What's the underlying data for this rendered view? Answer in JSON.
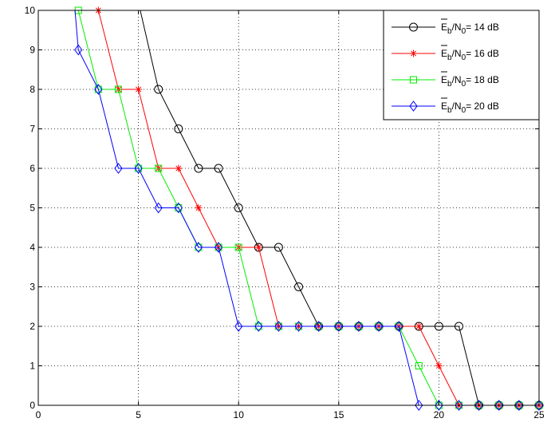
{
  "chart_data": {
    "type": "line",
    "title": "",
    "xlabel": "",
    "ylabel": "",
    "xlim": [
      0,
      25
    ],
    "ylim": [
      0,
      10
    ],
    "xticks": [
      0,
      5,
      10,
      15,
      20,
      25
    ],
    "yticks": [
      0,
      1,
      2,
      3,
      4,
      5,
      6,
      7,
      8,
      9,
      10
    ],
    "grid": true,
    "legend_position": "top-right",
    "series": [
      {
        "name": "Ē_b/N_0= 14 dB",
        "legend": {
          "var": "E",
          "sub1": "b",
          "mid": "/N",
          "sub2": "0",
          "suffix": "= 14 dB"
        },
        "color": "#000000",
        "marker": "circle",
        "x": [
          5,
          6,
          7,
          8,
          9,
          10,
          11,
          12,
          13,
          14,
          15,
          16,
          17,
          18,
          19,
          20,
          21,
          22,
          23,
          24,
          25
        ],
        "y": [
          10.2,
          8,
          7,
          6,
          6,
          5,
          4,
          4,
          3,
          2,
          2,
          2,
          2,
          2,
          2,
          2,
          2,
          0,
          0,
          0,
          0
        ],
        "marker_from": 1
      },
      {
        "name": "Ē_b/N_0= 16 dB",
        "legend": {
          "var": "E",
          "sub1": "b",
          "mid": "/N",
          "sub2": "0",
          "suffix": "= 16 dB"
        },
        "color": "#ff0000",
        "marker": "asterisk",
        "x": [
          3,
          4,
          5,
          6,
          7,
          8,
          9,
          10,
          11,
          12,
          13,
          14,
          15,
          16,
          17,
          18,
          19,
          20,
          21,
          22,
          23,
          24,
          25
        ],
        "y": [
          10,
          8,
          8,
          6,
          6,
          5,
          4,
          4,
          4,
          2,
          2,
          2,
          2,
          2,
          2,
          2,
          2,
          1,
          0,
          0,
          0,
          0,
          0
        ],
        "marker_from": 0
      },
      {
        "name": "Ē_b/N_0= 18 dB",
        "legend": {
          "var": "E",
          "sub1": "b",
          "mid": "/N",
          "sub2": "0",
          "suffix": "= 18 dB"
        },
        "color": "#00ee00",
        "marker": "square",
        "x": [
          2,
          3,
          4,
          5,
          6,
          7,
          8,
          9,
          10,
          11,
          12,
          13,
          14,
          15,
          16,
          17,
          18,
          19,
          20,
          21,
          22,
          23,
          24,
          25
        ],
        "y": [
          10,
          8,
          8,
          6,
          6,
          5,
          4,
          4,
          4,
          2,
          2,
          2,
          2,
          2,
          2,
          2,
          2,
          1,
          0,
          0,
          0,
          0,
          0,
          0
        ],
        "marker_from": 0
      },
      {
        "name": "Ē_b/N_0= 20 dB",
        "legend": {
          "var": "E",
          "sub1": "b",
          "mid": "/N",
          "sub2": "0",
          "suffix": "= 20 dB"
        },
        "color": "#0000ff",
        "marker": "diamond",
        "x": [
          1.8,
          2,
          3,
          4,
          5,
          6,
          7,
          8,
          9,
          10,
          11,
          12,
          13,
          14,
          15,
          16,
          17,
          18,
          19,
          20,
          21,
          22,
          23,
          24,
          25
        ],
        "y": [
          10.2,
          9,
          8,
          6,
          6,
          5,
          5,
          4,
          4,
          2,
          2,
          2,
          2,
          2,
          2,
          2,
          2,
          2,
          0,
          0,
          0,
          0,
          0,
          0,
          0
        ],
        "marker_from": 1
      }
    ]
  }
}
